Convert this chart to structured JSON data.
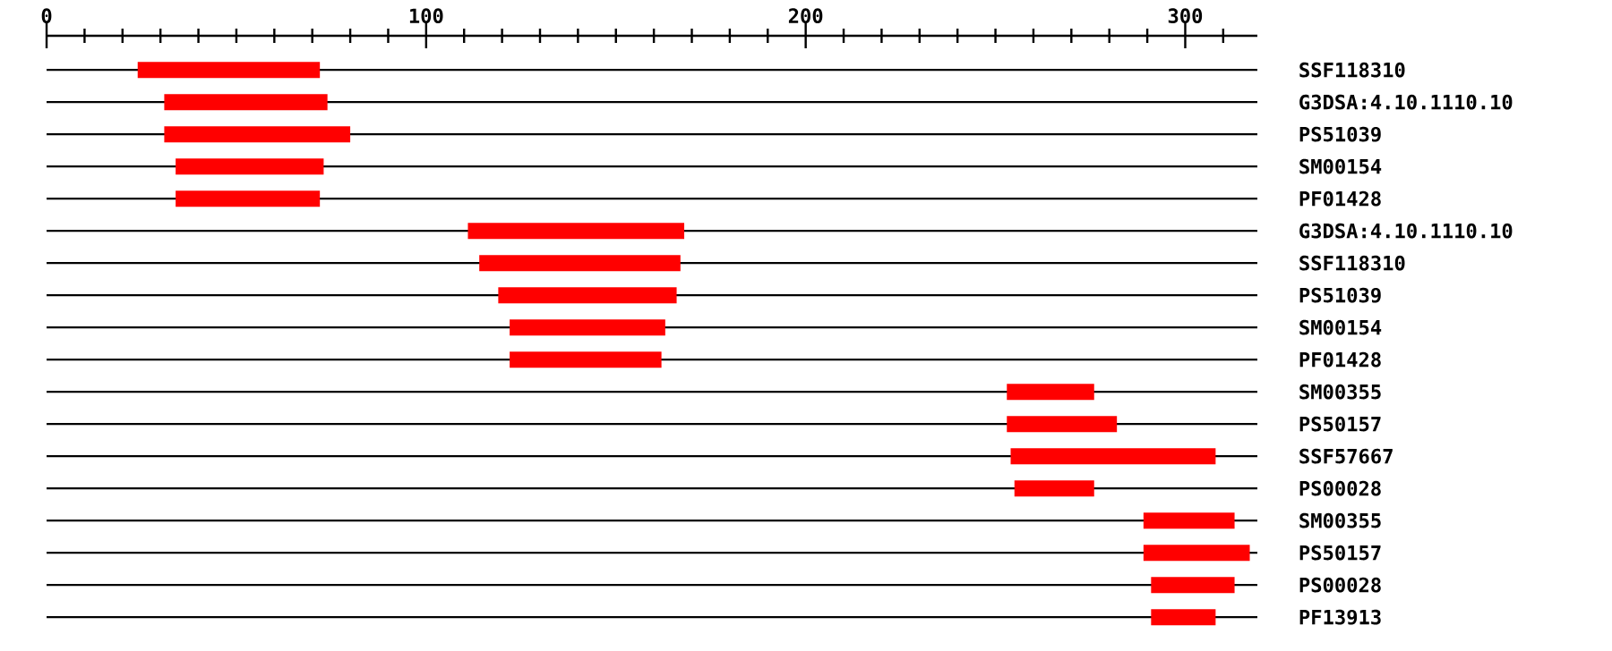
{
  "chart_data": {
    "type": "bar",
    "orientation": "horizontal",
    "categories": [
      "SSF118310",
      "G3DSA:4.10.1110.10",
      "PS51039",
      "SM00154",
      "PF01428",
      "G3DSA:4.10.1110.10",
      "SSF118310",
      "PS51039",
      "SM00154",
      "PF01428",
      "SM00355",
      "PS50157",
      "SSF57667",
      "PS00028",
      "SM00355",
      "PS50157",
      "PS00028",
      "PF13913"
    ],
    "base": [
      24,
      31,
      31,
      34,
      34,
      111,
      114,
      119,
      122,
      122,
      253,
      253,
      254,
      255,
      289,
      289,
      291,
      291
    ],
    "values": [
      48,
      43,
      49,
      39,
      38,
      57,
      53,
      47,
      41,
      40,
      23,
      29,
      54,
      21,
      24,
      28,
      22,
      17
    ],
    "color": "#ff0000",
    "xlim": [
      0,
      319
    ],
    "xticks": [
      0,
      {
        "value": 10,
        "label": null
      },
      {
        "value": 20,
        "label": null
      },
      {
        "value": 30,
        "label": null
      },
      {
        "value": 40,
        "label": null
      },
      {
        "value": 50,
        "label": null
      },
      {
        "value": 60,
        "label": null
      },
      {
        "value": 70,
        "label": null
      },
      {
        "value": 80,
        "label": null
      },
      {
        "value": 90,
        "label": null
      },
      100,
      {
        "value": 110,
        "label": null
      },
      {
        "value": 120,
        "label": null
      },
      {
        "value": 130,
        "label": null
      },
      {
        "value": 140,
        "label": null
      },
      {
        "value": 150,
        "label": null
      },
      {
        "value": 160,
        "label": null
      },
      {
        "value": 170,
        "label": null
      },
      {
        "value": 180,
        "label": null
      },
      {
        "value": 190,
        "label": null
      },
      200,
      {
        "value": 210,
        "label": null
      },
      {
        "value": 220,
        "label": null
      },
      {
        "value": 230,
        "label": null
      },
      {
        "value": 240,
        "label": null
      },
      {
        "value": 250,
        "label": null
      },
      {
        "value": 260,
        "label": null
      },
      {
        "value": 270,
        "label": null
      },
      {
        "value": 280,
        "label": null
      },
      {
        "value": 290,
        "label": null
      },
      300,
      {
        "value": 310,
        "label": null
      }
    ],
    "grid": "y"
  }
}
